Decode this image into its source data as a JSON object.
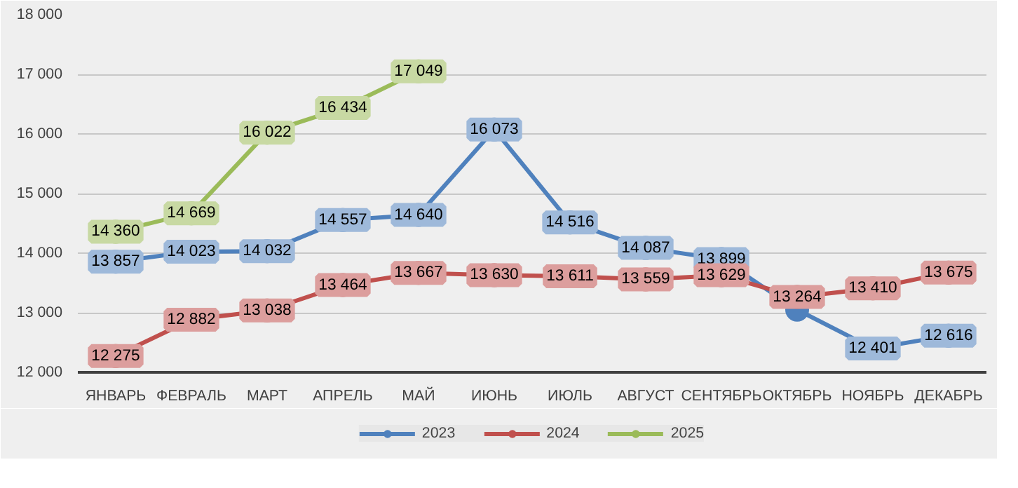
{
  "chart_data": {
    "type": "line",
    "categories": [
      "ЯНВАРЬ",
      "ФЕВРАЛЬ",
      "МАРТ",
      "АПРЕЛЬ",
      "МАЙ",
      "ИЮНЬ",
      "ИЮЛЬ",
      "АВГУСТ",
      "СЕНТЯБРЬ",
      "ОКТЯБРЬ",
      "НОЯБРЬ",
      "ДЕКАБРЬ"
    ],
    "ylim": [
      12000,
      18000
    ],
    "yticks": [
      {
        "value": 12000,
        "label": "12 000"
      },
      {
        "value": 13000,
        "label": "13 000"
      },
      {
        "value": 14000,
        "label": "14 000"
      },
      {
        "value": 15000,
        "label": "15 000"
      },
      {
        "value": 16000,
        "label": "16 000"
      },
      {
        "value": 17000,
        "label": "17 000"
      },
      {
        "value": 18000,
        "label": "18 000"
      }
    ],
    "grid": "y",
    "legend": "bottom",
    "marker": "circle",
    "line_style": "solid",
    "series": [
      {
        "name": "2023",
        "color": "#4f81bd",
        "values": [
          13857,
          14023,
          14032,
          14557,
          14640,
          16073,
          14516,
          14087,
          13899,
          13050,
          12401,
          12616
        ],
        "value_labels": [
          "13 857",
          "14 023",
          "14 032",
          "14 557",
          "14 640",
          "16 073",
          "14 516",
          "14 087",
          "13 899",
          null,
          "12 401",
          "12 616"
        ]
      },
      {
        "name": "2024",
        "color": "#c0504d",
        "values": [
          12275,
          12882,
          13038,
          13464,
          13667,
          13630,
          13611,
          13559,
          13629,
          13264,
          13410,
          13675
        ],
        "value_labels": [
          "12 275",
          "12 882",
          "13 038",
          "13 464",
          "13 667",
          "13 630",
          "13 611",
          "13 559",
          "13 629",
          "13 264",
          "13 410",
          "13 675"
        ]
      },
      {
        "name": "2025",
        "color": "#9bbb59",
        "values": [
          14360,
          14669,
          16022,
          16434,
          17049,
          null,
          null,
          null,
          null,
          null,
          null,
          null
        ],
        "value_labels": [
          "14 360",
          "14 669",
          "16 022",
          "16 434",
          "17 049",
          null,
          null,
          null,
          null,
          null,
          null,
          null
        ]
      }
    ]
  }
}
